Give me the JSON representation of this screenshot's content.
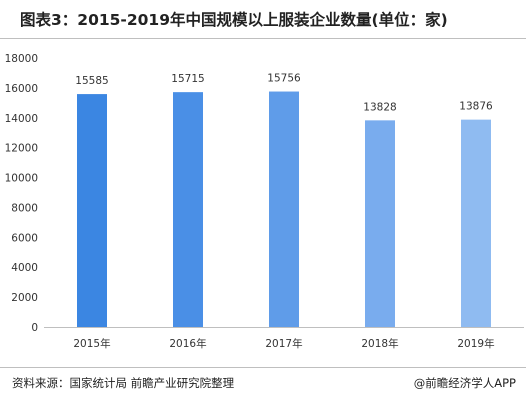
{
  "title": "图表3：2015-2019年中国规模以上服装企业数量(单位：家)",
  "footer": {
    "source": "资料来源：国家统计局 前瞻产业研究院整理",
    "brand": "@前瞻经济学人APP"
  },
  "colors": {
    "bars": [
      "#3b86e2",
      "#4a8fe6",
      "#5f9ce9",
      "#79acee",
      "#8fbbf1"
    ],
    "axis": "#bfbfbf",
    "text": "#333333"
  },
  "chart_data": {
    "type": "bar",
    "categories": [
      "2015年",
      "2016年",
      "2017年",
      "2018年",
      "2019年"
    ],
    "values": [
      15585,
      15715,
      15756,
      13828,
      13876
    ],
    "data_labels": [
      "15585",
      "15715",
      "15756",
      "13828",
      "13876"
    ],
    "ylim": [
      0,
      18000
    ],
    "yticks": [
      0,
      2000,
      4000,
      6000,
      8000,
      10000,
      12000,
      14000,
      16000,
      18000
    ],
    "xlabel": "",
    "ylabel": "",
    "grid": false,
    "legend": "none"
  }
}
